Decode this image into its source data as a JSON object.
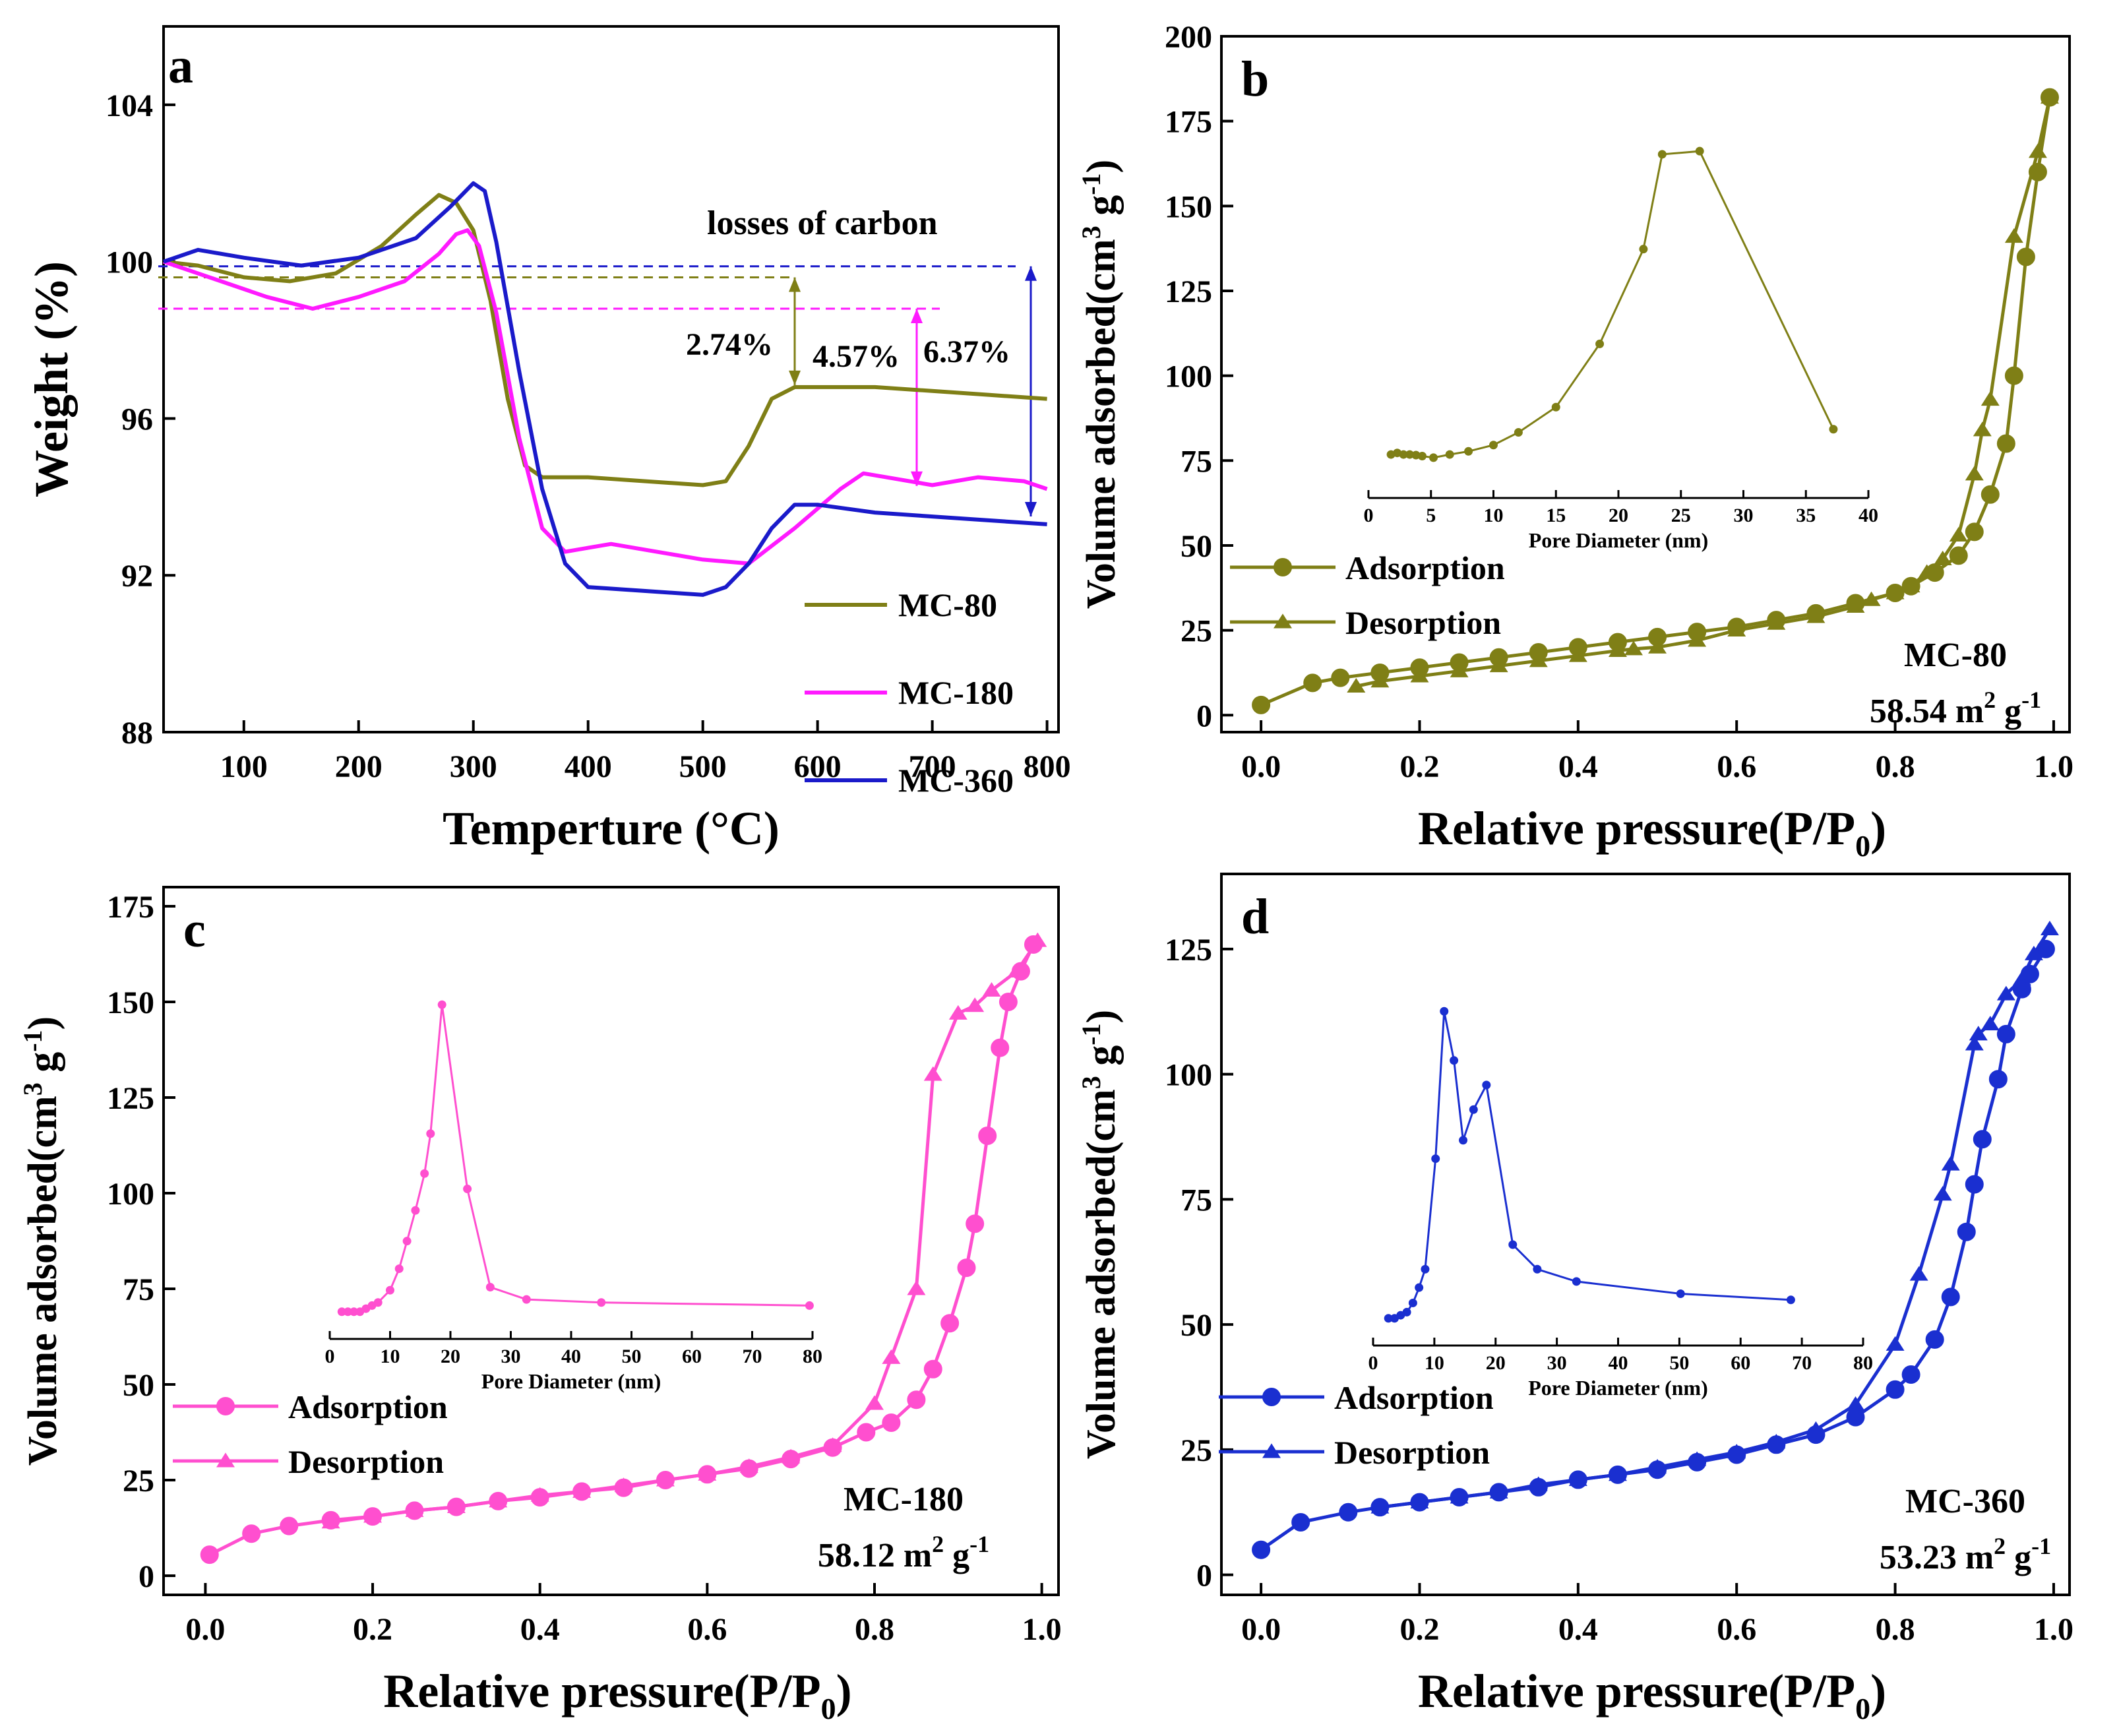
{
  "chart_data": [
    {
      "panel": "a",
      "type": "line",
      "xlabel": "Temperture (°C)",
      "ylabel": "Weight (%)",
      "xlim": [
        30,
        810
      ],
      "ylim": [
        88,
        106
      ],
      "xticks": [
        100,
        200,
        300,
        400,
        500,
        600,
        700,
        800
      ],
      "yticks": [
        88,
        92,
        96,
        100,
        104
      ],
      "annotation_title": "losses of carbon",
      "loss_labels": [
        "2.74%",
        "4.57%",
        "6.37%"
      ],
      "series": [
        {
          "name": "MC-80",
          "color": "#7f7f16",
          "x": [
            30,
            60,
            100,
            140,
            180,
            220,
            250,
            270,
            285,
            300,
            315,
            330,
            345,
            360,
            400,
            450,
            500,
            520,
            540,
            560,
            580,
            650,
            700,
            750,
            800
          ],
          "y": [
            100,
            99.9,
            99.6,
            99.5,
            99.7,
            100.4,
            101.2,
            101.7,
            101.5,
            100.8,
            99.0,
            96.5,
            94.8,
            94.5,
            94.5,
            94.4,
            94.3,
            94.4,
            95.3,
            96.5,
            96.8,
            96.8,
            96.7,
            96.6,
            96.5
          ]
        },
        {
          "name": "MC-180",
          "color": "#ff1aff",
          "x": [
            30,
            80,
            120,
            160,
            200,
            240,
            270,
            285,
            295,
            305,
            320,
            340,
            360,
            380,
            400,
            420,
            460,
            500,
            540,
            580,
            620,
            640,
            660,
            700,
            740,
            780,
            800
          ],
          "y": [
            100,
            99.5,
            99.1,
            98.8,
            99.1,
            99.5,
            100.2,
            100.7,
            100.8,
            100.4,
            98.7,
            95.5,
            93.2,
            92.6,
            92.7,
            92.8,
            92.6,
            92.4,
            92.3,
            93.2,
            94.2,
            94.6,
            94.5,
            94.3,
            94.5,
            94.4,
            94.2
          ]
        },
        {
          "name": "MC-360",
          "color": "#1a1aca",
          "x": [
            30,
            60,
            100,
            150,
            200,
            250,
            280,
            300,
            310,
            320,
            340,
            360,
            380,
            400,
            450,
            500,
            520,
            540,
            560,
            580,
            600,
            650,
            700,
            750,
            800
          ],
          "y": [
            100,
            100.3,
            100.1,
            99.9,
            100.1,
            100.6,
            101.4,
            102.0,
            101.8,
            100.5,
            97.2,
            94.2,
            92.3,
            91.7,
            91.6,
            91.5,
            91.7,
            92.3,
            93.2,
            93.8,
            93.8,
            93.6,
            93.5,
            93.4,
            93.3
          ]
        }
      ]
    },
    {
      "panel": "b",
      "type": "line",
      "color": "#7f7f16",
      "xlabel_main": "Relative pressure(P/P",
      "xlabel_sub": "0",
      "xlabel_close": ")",
      "ylabel_main": "Volume adsorbed(cm",
      "ylabel_sup3": "3",
      "ylabel_g": " g",
      "ylabel_sup": "-1",
      "ylabel_close": ")",
      "xlim": [
        -0.05,
        1.02
      ],
      "ylim": [
        -5,
        200
      ],
      "xticks": [
        "0.0",
        "0.2",
        "0.4",
        "0.6",
        "0.8",
        "1.0"
      ],
      "yticks": [
        0,
        25,
        50,
        75,
        100,
        125,
        150,
        175,
        200
      ],
      "sample": "MC-80",
      "surface_value": "58.54",
      "surface_unit": " m",
      "surface_sup": "2",
      "surface_g": " g",
      "surface_sup2": "-1",
      "legend": [
        "Adsorption",
        "Desorption"
      ],
      "adsorption": {
        "x": [
          0.0,
          0.065,
          0.1,
          0.15,
          0.2,
          0.25,
          0.3,
          0.35,
          0.4,
          0.45,
          0.5,
          0.55,
          0.6,
          0.65,
          0.7,
          0.75,
          0.8,
          0.82,
          0.85,
          0.88,
          0.9,
          0.92,
          0.94,
          0.95,
          0.965,
          0.98,
          0.995
        ],
        "y": [
          3,
          9.5,
          11,
          12.5,
          14,
          15.5,
          17,
          18.5,
          20,
          21.5,
          23,
          24.5,
          26,
          28,
          30,
          33,
          36,
          38,
          42,
          47,
          54,
          65,
          80,
          100,
          135,
          160,
          182
        ]
      },
      "desorption": {
        "x": [
          0.995,
          0.98,
          0.95,
          0.92,
          0.91,
          0.9,
          0.88,
          0.86,
          0.84,
          0.82,
          0.8,
          0.77,
          0.75,
          0.7,
          0.65,
          0.6,
          0.55,
          0.5,
          0.47,
          0.45,
          0.4,
          0.35,
          0.3,
          0.25,
          0.2,
          0.15,
          0.12
        ],
        "y": [
          182,
          166,
          141,
          93,
          84,
          71,
          53,
          46,
          42,
          38,
          36,
          34,
          32,
          29,
          27,
          25,
          22,
          20,
          19.5,
          19,
          17.5,
          16,
          14.5,
          13,
          11.5,
          10,
          8.5
        ]
      },
      "inset": {
        "xlabel": "Pore Diameter (nm)",
        "xlim": [
          0,
          40
        ],
        "xticks": [
          0,
          5,
          10,
          15,
          20,
          25,
          30,
          35,
          40
        ],
        "x": [
          1.8,
          2.3,
          2.8,
          3.3,
          3.8,
          4.3,
          5.2,
          6.5,
          8,
          10,
          12,
          15,
          18.5,
          22,
          23.5,
          26.5,
          37.2
        ],
        "y": [
          0.05,
          0.055,
          0.05,
          0.05,
          0.048,
          0.045,
          0.04,
          0.05,
          0.06,
          0.08,
          0.12,
          0.2,
          0.4,
          0.7,
          1.0,
          1.01,
          0.13
        ]
      }
    },
    {
      "panel": "c",
      "type": "line",
      "color": "#ff4fcf",
      "xlabel_main": "Relative pressure(P/P",
      "xlabel_sub": "0",
      "xlabel_close": ")",
      "ylabel_main": "Volume adsorbed(cm",
      "ylabel_sup3": "3",
      "ylabel_g": " g",
      "ylabel_sup": "-1",
      "ylabel_close": ")",
      "xlim": [
        -0.05,
        1.02
      ],
      "ylim": [
        -5,
        180
      ],
      "xticks": [
        "0.0",
        "0.2",
        "0.4",
        "0.6",
        "0.8",
        "1.0"
      ],
      "yticks": [
        0,
        25,
        50,
        75,
        100,
        125,
        150,
        175
      ],
      "sample": "MC-180",
      "surface_value": "58.12",
      "surface_unit": " m",
      "surface_sup": "2",
      "surface_g": " g",
      "surface_sup2": "-1",
      "legend": [
        "Adsorption",
        "Desorption"
      ],
      "adsorption": {
        "x": [
          0.005,
          0.055,
          0.1,
          0.15,
          0.2,
          0.25,
          0.3,
          0.35,
          0.4,
          0.45,
          0.5,
          0.55,
          0.6,
          0.65,
          0.7,
          0.75,
          0.79,
          0.82,
          0.85,
          0.87,
          0.89,
          0.91,
          0.92,
          0.935,
          0.95,
          0.96,
          0.975,
          0.99
        ],
        "y": [
          5.5,
          11,
          13,
          14.5,
          15.5,
          17,
          18,
          19.5,
          20.5,
          22,
          23,
          25,
          26.5,
          28,
          30.5,
          33.5,
          37.5,
          40,
          46,
          54,
          66,
          80.5,
          92,
          115,
          138,
          150,
          158,
          165
        ]
      },
      "desorption": {
        "x": [
          0.995,
          0.97,
          0.94,
          0.92,
          0.9,
          0.87,
          0.85,
          0.82,
          0.8,
          0.75,
          0.7,
          0.65,
          0.6,
          0.55,
          0.5,
          0.45,
          0.4,
          0.35,
          0.3,
          0.25,
          0.2,
          0.15
        ],
        "y": [
          166,
          158,
          153,
          149,
          147,
          131,
          75,
          57,
          45,
          34,
          31,
          28.5,
          26.5,
          25,
          23.5,
          22,
          21,
          19.5,
          18,
          17,
          15.5,
          14
        ]
      },
      "inset": {
        "xlabel": "Pore Diameter (nm)",
        "xlim": [
          0,
          80
        ],
        "xticks": [
          0,
          10,
          20,
          30,
          40,
          50,
          60,
          70,
          80
        ],
        "x": [
          2,
          3,
          4,
          5,
          6,
          7,
          8,
          10,
          11.5,
          12.8,
          14.2,
          15.7,
          16.7,
          18.6,
          22.8,
          26.6,
          32.6,
          45,
          79.5
        ],
        "y": [
          0.0,
          0.0,
          0.0,
          0.0,
          0.01,
          0.02,
          0.03,
          0.07,
          0.14,
          0.23,
          0.33,
          0.45,
          0.58,
          1.0,
          0.4,
          0.08,
          0.04,
          0.03,
          0.02
        ]
      }
    },
    {
      "panel": "d",
      "type": "line",
      "color": "#1a2fd0",
      "xlabel_main": "Relative pressure(P/P",
      "xlabel_sub": "0",
      "xlabel_close": ")",
      "ylabel_main": "Volume adsorbed(cm",
      "ylabel_sup3": "3",
      "ylabel_g": " g",
      "ylabel_sup": "-1",
      "ylabel_close": ")",
      "xlim": [
        -0.05,
        1.02
      ],
      "ylim": [
        -4,
        140
      ],
      "xticks": [
        "0.0",
        "0.2",
        "0.4",
        "0.6",
        "0.8",
        "1.0"
      ],
      "yticks": [
        0,
        25,
        50,
        75,
        100,
        125
      ],
      "sample": "MC-360",
      "surface_value": "53.23",
      "surface_unit": " m",
      "surface_sup": "2",
      "surface_g": " g",
      "surface_sup2": "-1",
      "legend": [
        "Adsorption",
        "Desorption"
      ],
      "adsorption": {
        "x": [
          0.0,
          0.05,
          0.11,
          0.15,
          0.2,
          0.25,
          0.3,
          0.35,
          0.4,
          0.45,
          0.5,
          0.55,
          0.6,
          0.65,
          0.7,
          0.75,
          0.8,
          0.82,
          0.85,
          0.87,
          0.89,
          0.9,
          0.91,
          0.93,
          0.94,
          0.96,
          0.97,
          0.99
        ],
        "y": [
          5,
          10.5,
          12.5,
          13.5,
          14.5,
          15.5,
          16.5,
          17.5,
          19,
          20,
          21,
          22.5,
          24,
          26,
          28,
          31.5,
          37,
          40,
          47,
          55.5,
          68.5,
          78,
          87,
          99,
          108,
          117,
          120,
          125
        ]
      },
      "desorption": {
        "x": [
          0.995,
          0.975,
          0.96,
          0.94,
          0.92,
          0.905,
          0.9,
          0.87,
          0.86,
          0.83,
          0.8,
          0.75,
          0.7,
          0.65,
          0.6,
          0.55,
          0.5,
          0.45,
          0.4,
          0.35,
          0.3,
          0.25,
          0.2,
          0.15
        ],
        "y": [
          129,
          124,
          119,
          116,
          110,
          108,
          106,
          82,
          76,
          60,
          46,
          34,
          29,
          26.5,
          24.5,
          23,
          21.5,
          20,
          19,
          18,
          16.5,
          15.5,
          14.5,
          13.5
        ]
      },
      "inset": {
        "xlabel": "Pore Diameter (nm)",
        "xlim": [
          0,
          80
        ],
        "xticks": [
          0,
          10,
          20,
          30,
          40,
          50,
          60,
          70,
          80
        ],
        "x": [
          2.5,
          3.5,
          4.5,
          5.5,
          6.5,
          7.5,
          8.5,
          10.2,
          11.6,
          13.2,
          14.7,
          16.4,
          18.5,
          22.8,
          26.8,
          33.2,
          50.2,
          68.2
        ],
        "y": [
          0.0,
          0.0,
          0.01,
          0.02,
          0.05,
          0.1,
          0.16,
          0.52,
          1.0,
          0.84,
          0.58,
          0.68,
          0.76,
          0.24,
          0.16,
          0.12,
          0.08,
          0.06
        ]
      }
    }
  ],
  "panel_labels": [
    "a",
    "b",
    "c",
    "d"
  ]
}
